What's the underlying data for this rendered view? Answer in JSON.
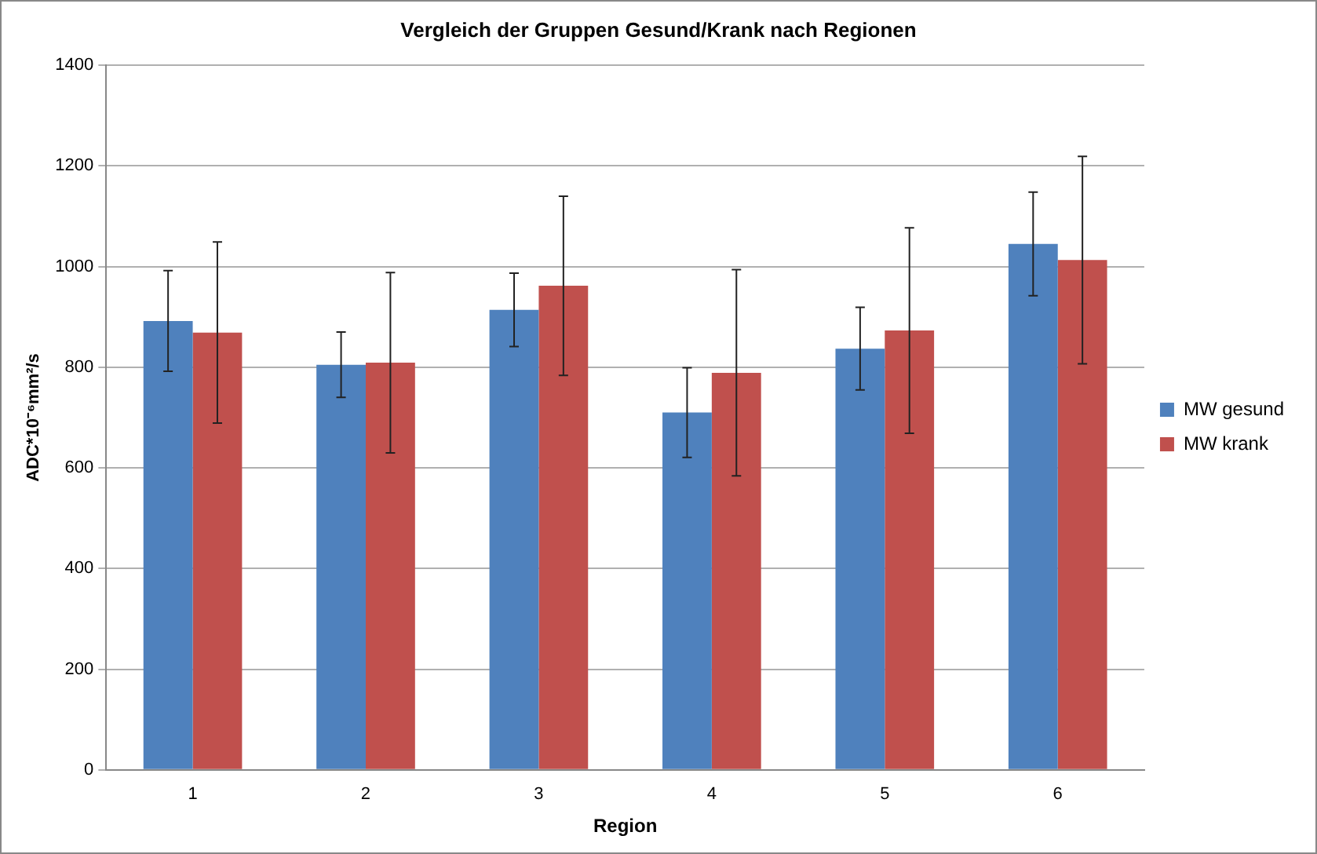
{
  "chart_data": {
    "type": "bar",
    "title": "Vergleich der Gruppen Gesund/Krank nach Regionen",
    "xlabel": "Region",
    "ylabel": "ADC*10⁻⁶mm²/s",
    "categories": [
      "1",
      "2",
      "3",
      "4",
      "5",
      "6"
    ],
    "series": [
      {
        "name": "MW gesund",
        "color": "#4f81bd",
        "values": [
          892,
          805,
          914,
          710,
          837,
          1045
        ],
        "errors": [
          100,
          65,
          73,
          89,
          82,
          103
        ]
      },
      {
        "name": "MW krank",
        "color": "#c0504d",
        "values": [
          869,
          809,
          962,
          789,
          873,
          1013
        ],
        "errors": [
          180,
          179,
          178,
          205,
          204,
          206
        ]
      }
    ],
    "ylim": [
      0,
      1400
    ],
    "yticks": [
      0,
      200,
      400,
      600,
      800,
      1000,
      1200,
      1400
    ],
    "grid": "y",
    "legend": "right"
  }
}
